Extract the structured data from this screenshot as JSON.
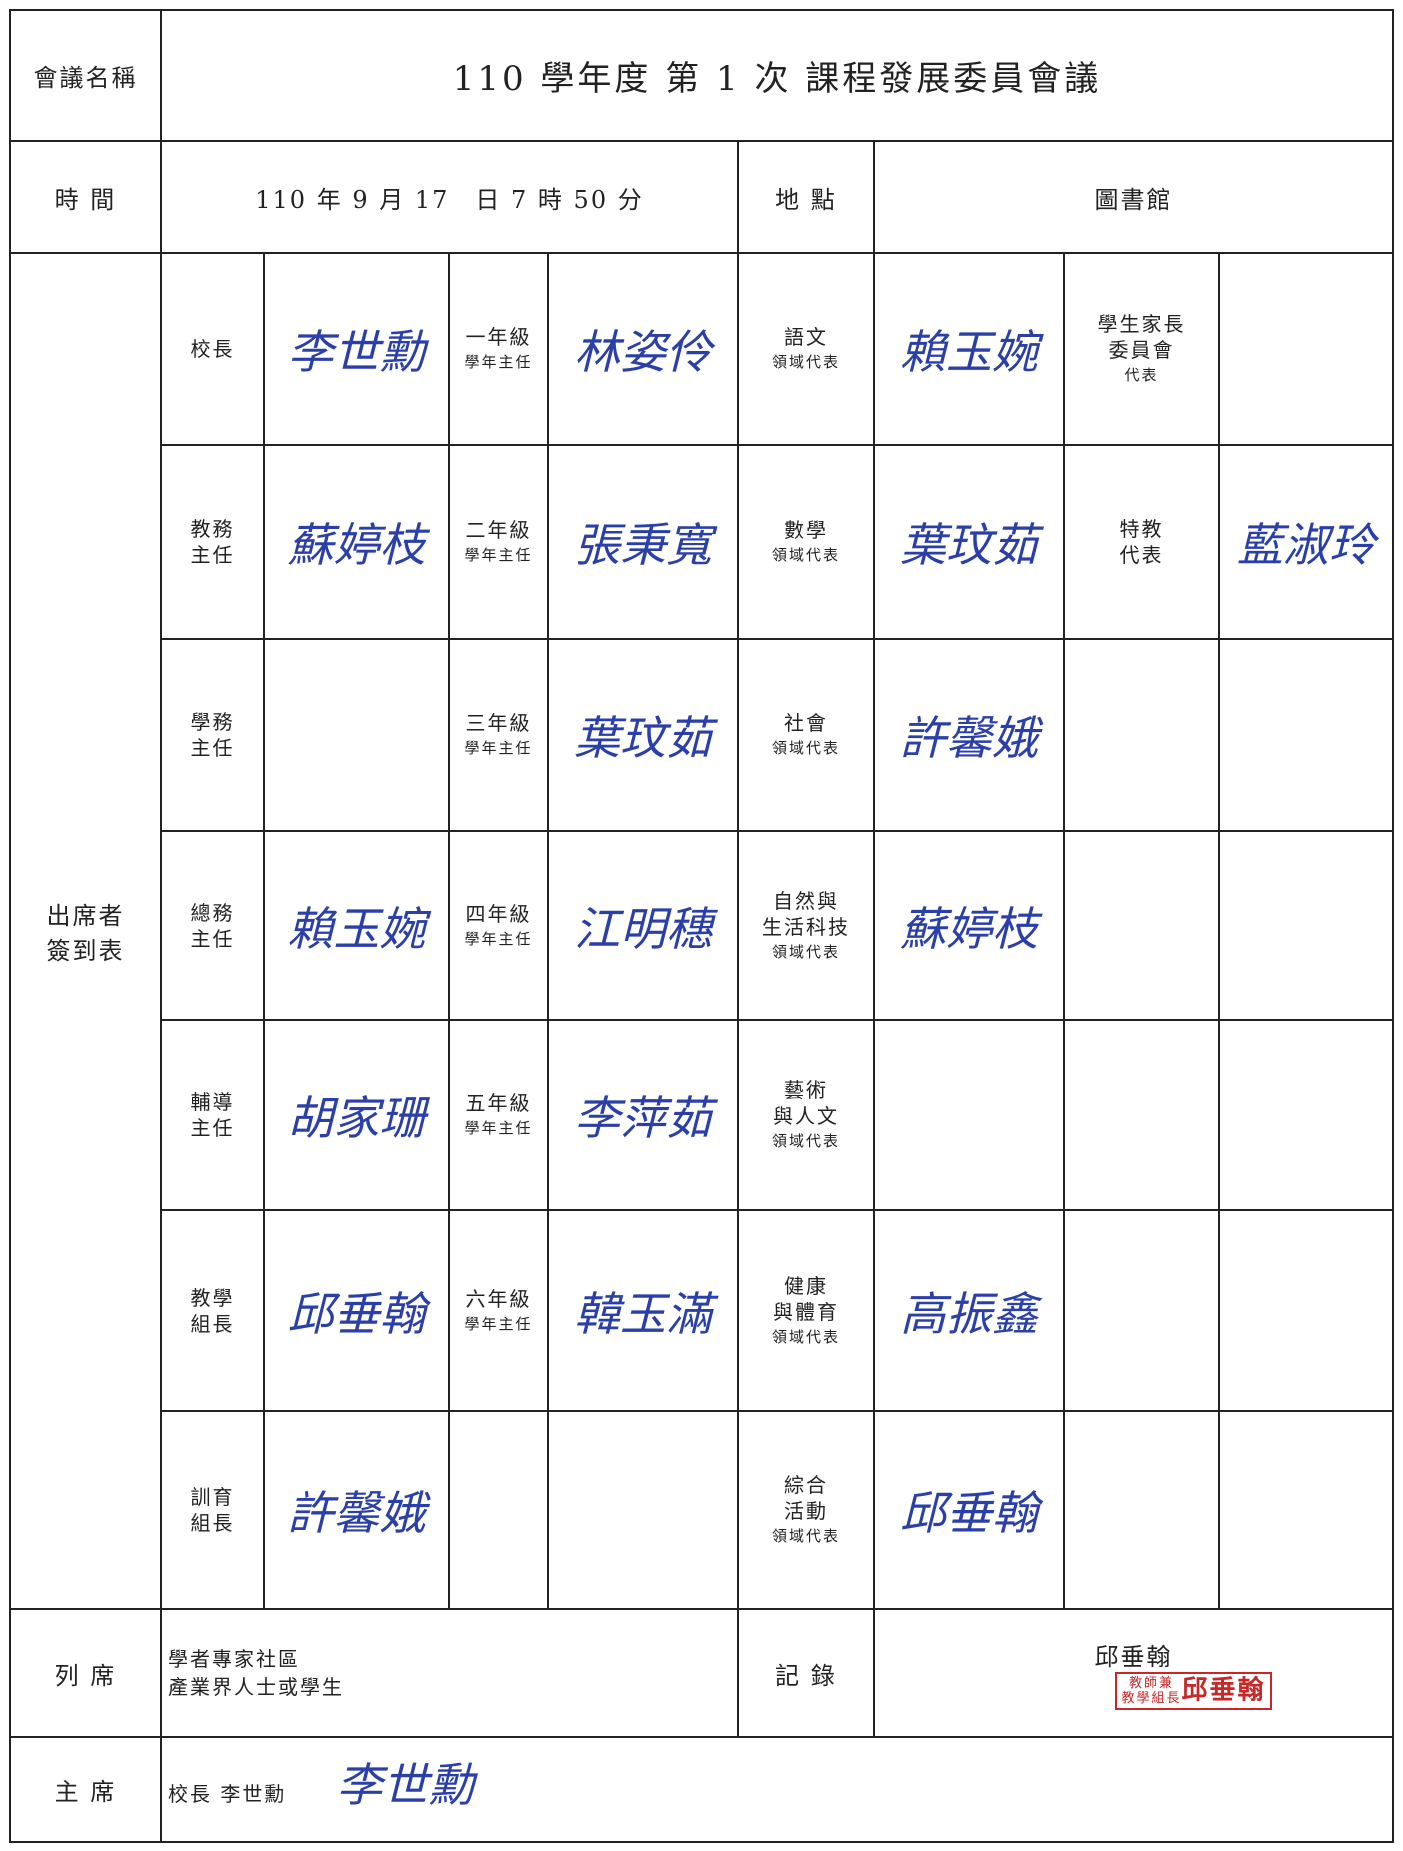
{
  "header": {
    "label": "會議名稱",
    "title": "110 學年度 第 1 次 課程發展委員會議"
  },
  "time": {
    "label": "時 間",
    "value": "110 年 9 月 17　日 7 時 50 分",
    "place_label": "地 點",
    "place": "圖書館"
  },
  "attendance": {
    "label": [
      "出席者",
      "簽到表"
    ],
    "rows": [
      [
        {
          "title": [
            "校長"
          ],
          "sig": "李世勳"
        },
        {
          "title": [
            "一年級"
          ],
          "note": "學年主任",
          "sig": "林姿伶"
        },
        {
          "title": [
            "語文"
          ],
          "note": "領域代表",
          "sig": "賴玉婉"
        },
        {
          "title": [
            "學生家長",
            "委員會"
          ],
          "note": "代表"
        }
      ],
      [
        {
          "title": [
            "教務",
            "主任"
          ],
          "sig": "蘇婷枝"
        },
        {
          "title": [
            "二年級"
          ],
          "note": "學年主任",
          "sig": "張秉寬"
        },
        {
          "title": [
            "數學"
          ],
          "note": "領域代表",
          "sig": "葉玟茹"
        },
        {
          "title": [
            "特教",
            "代表"
          ],
          "sig": "藍淑玲"
        }
      ],
      [
        {
          "title": [
            "學務",
            "主任"
          ]
        },
        {
          "title": [
            "三年級"
          ],
          "note": "學年主任",
          "sig": "葉玟茹"
        },
        {
          "title": [
            "社會"
          ],
          "note": "領域代表",
          "sig": "許馨娥"
        },
        {}
      ],
      [
        {
          "title": [
            "總務",
            "主任"
          ],
          "sig": "賴玉婉"
        },
        {
          "title": [
            "四年級"
          ],
          "note": "學年主任",
          "sig": "江明穗"
        },
        {
          "title": [
            "自然與",
            "生活科技"
          ],
          "note": "領域代表",
          "sig": "蘇婷枝"
        },
        {}
      ],
      [
        {
          "title": [
            "輔導",
            "主任"
          ],
          "sig": "胡家珊"
        },
        {
          "title": [
            "五年級"
          ],
          "note": "學年主任",
          "sig": "李萍茹"
        },
        {
          "title": [
            "藝術",
            "與人文"
          ],
          "note": "領域代表"
        },
        {}
      ],
      [
        {
          "title": [
            "教學",
            "組長"
          ],
          "sig": "邱垂翰"
        },
        {
          "title": [
            "六年級"
          ],
          "note": "學年主任",
          "sig": "韓玉滿"
        },
        {
          "title": [
            "健康",
            "與體育"
          ],
          "note": "領域代表",
          "sig": "高振鑫"
        },
        {}
      ],
      [
        {
          "title": [
            "訓育",
            "組長"
          ],
          "sig": "許馨娥"
        },
        {},
        {
          "title": [
            "綜合",
            "活動"
          ],
          "note": "領域代表",
          "sig": "邱垂翰"
        },
        {}
      ]
    ]
  },
  "observers": {
    "label": "列 席",
    "text": [
      "學者專家社區",
      "產業界人士或學生"
    ],
    "record_label": "記 錄",
    "recorder": "邱垂翰",
    "stamp": [
      "教師兼",
      "教學組長",
      "邱垂翰"
    ]
  },
  "chair": {
    "label": "主 席",
    "name": "校長 李世勳",
    "sig": "李世勳"
  }
}
